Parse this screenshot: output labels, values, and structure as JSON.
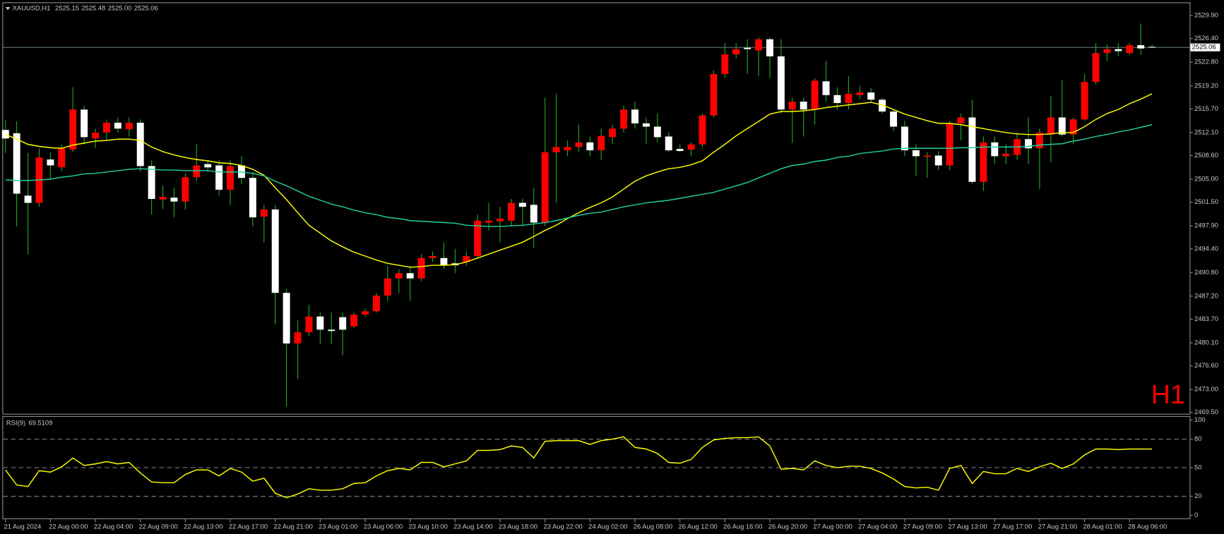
{
  "chart_data": [
    {
      "type": "candlestick",
      "symbol": "XAUUSD,H1",
      "ohlc_labels": [
        "2525.15",
        "2525.48",
        "2525.00",
        "2525.06"
      ],
      "timeframe_label": "H1",
      "categories": [
        "21 Aug 2024",
        null,
        null,
        null,
        "22 Aug 00:00",
        null,
        null,
        null,
        "22 Aug 04:00",
        null,
        null,
        null,
        "22 Aug 09:00",
        null,
        null,
        null,
        "22 Aug 13:00",
        null,
        null,
        null,
        "22 Aug 17:00",
        null,
        null,
        null,
        "22 Aug 21:00",
        null,
        null,
        null,
        "23 Aug 01:00",
        null,
        null,
        null,
        "23 Aug 06:00",
        null,
        null,
        null,
        "23 Aug 10:00",
        null,
        null,
        null,
        "23 Aug 14:00",
        null,
        null,
        null,
        "23 Aug 18:00",
        null,
        null,
        null,
        "23 Aug 22:00",
        null,
        null,
        null,
        "24 Aug 02:00",
        null,
        null,
        null,
        "26 Aug 08:00",
        null,
        null,
        null,
        "26 Aug 12:00",
        null,
        null,
        null,
        "26 Aug 16:00",
        null,
        null,
        null,
        "26 Aug 20:00",
        null,
        null,
        null,
        "27 Aug 00:00",
        null,
        null,
        null,
        "27 Aug 04:00",
        null,
        null,
        null,
        "27 Aug 09:00",
        null,
        null,
        null,
        "27 Aug 13:00",
        null,
        null,
        null,
        "27 Aug 17:00",
        null,
        null,
        null,
        "27 Aug 21:00",
        null,
        null,
        null,
        "28 Aug 01:00",
        null,
        null,
        null,
        "28 Aug 06:00",
        null,
        null
      ],
      "open": [
        2512.5,
        2512,
        2502.5,
        2501.4,
        2508,
        2506.8,
        2509.5,
        2515.6,
        2511.2,
        2512.1,
        2513.6,
        2512.6,
        2513.6,
        2507,
        2501.9,
        2502.2,
        2501.6,
        2505.3,
        2507.3,
        2507.1,
        2503.4,
        2507.1,
        2505.2,
        2499.3,
        2500.4,
        2487.7,
        2480,
        2481.7,
        2484.1,
        2482.1,
        2484,
        2482.6,
        2484.4,
        2484.9,
        2487.3,
        2489.9,
        2490.7,
        2489.9,
        2493,
        2493,
        2492.2,
        2492.4,
        2493.3,
        2498.4,
        2498.6,
        2498.7,
        2501.4,
        2501.1,
        2498.4,
        2509.1,
        2509.4,
        2509.9,
        2510.6,
        2509.4,
        2511.4,
        2512.7,
        2515.6,
        2513.5,
        2513,
        2511.5,
        2509.6,
        2509.5,
        2510.3,
        2514.7,
        2521,
        2524,
        2525,
        2524.6,
        2526.3,
        2523.7,
        2515.6,
        2516.8,
        2515.6,
        2519.9,
        2517.8,
        2516.6,
        2517.8,
        2518.2,
        2517.1,
        2515.3,
        2513,
        2509.4,
        2508.4,
        2508.6,
        2507.1,
        2513.5,
        2514.4,
        2504.6,
        2510.6,
        2508.5,
        2508.7,
        2511.1,
        2509.7,
        2511.8,
        2514.4,
        2511.8,
        2514.1,
        2519.8,
        2524.2,
        2524.8,
        2524.2,
        2525.4,
        2525.15
      ],
      "high": [
        2514,
        2513.8,
        2509,
        2509.7,
        2509.1,
        2510.3,
        2519,
        2516.2,
        2512.7,
        2514.1,
        2514.4,
        2514.4,
        2514.1,
        2507.9,
        2504,
        2503.7,
        2505.9,
        2510.3,
        2507.9,
        2507.9,
        2507.9,
        2508.5,
        2506.1,
        2501.1,
        2501.1,
        2488.3,
        2483.5,
        2485.9,
        2484.7,
        2484.7,
        2484.7,
        2484.7,
        2485.3,
        2487.7,
        2491.8,
        2491.3,
        2491.8,
        2493.6,
        2494,
        2495.4,
        2494.4,
        2494,
        2499.6,
        2501.4,
        2500.8,
        2502,
        2502,
        2503.7,
        2517.4,
        2518,
        2510.9,
        2513.3,
        2511.5,
        2512.7,
        2513.3,
        2516.2,
        2516.8,
        2514.4,
        2515,
        2512.1,
        2510.3,
        2510.6,
        2515,
        2521.6,
        2525.7,
        2525.7,
        2526.3,
        2526.6,
        2526.6,
        2526.3,
        2517.4,
        2517.4,
        2520.4,
        2523,
        2519,
        2520.7,
        2519.2,
        2518.9,
        2517.4,
        2515.6,
        2513.9,
        2510.3,
        2509.1,
        2509.3,
        2513.9,
        2515,
        2517.1,
        2511.5,
        2511.5,
        2510.3,
        2512.1,
        2514.4,
        2512.7,
        2517.7,
        2520.1,
        2514.4,
        2521,
        2525.7,
        2525.5,
        2525.7,
        2525.7,
        2528.7,
        2525.48
      ],
      "low": [
        2509,
        2497.8,
        2493.6,
        2500.8,
        2504.9,
        2506.2,
        2509.1,
        2510.3,
        2509.7,
        2511,
        2512.1,
        2511.5,
        2506.1,
        2499.6,
        2500.5,
        2499.2,
        2500.4,
        2504.7,
        2506.1,
        2502.5,
        2501.1,
        2504.3,
        2497.8,
        2495.4,
        2482.9,
        2470.4,
        2474.6,
        2481.1,
        2479.9,
        2479.9,
        2478.2,
        2482.3,
        2484.1,
        2484.7,
        2486.5,
        2487.7,
        2486.5,
        2489.5,
        2492.4,
        2491.3,
        2490.7,
        2491.8,
        2493,
        2497.2,
        2495.4,
        2497.8,
        2497.8,
        2494.5,
        2497.8,
        2501.4,
        2508.5,
        2509.1,
        2508.5,
        2507.9,
        2510.3,
        2512.1,
        2512.7,
        2510.3,
        2510.6,
        2509.1,
        2509.1,
        2508.5,
        2509.9,
        2514.4,
        2520.4,
        2523.4,
        2521,
        2520.7,
        2520.4,
        2515,
        2510.5,
        2511.5,
        2513.3,
        2516.8,
        2515.6,
        2515.6,
        2517.2,
        2516.6,
        2515,
        2512.3,
        2508.5,
        2505.5,
        2505.2,
        2506.4,
        2506.4,
        2510.9,
        2504.3,
        2503.2,
        2507.3,
        2507.3,
        2507.9,
        2507.3,
        2503.5,
        2507.6,
        2511.5,
        2510.3,
        2513.9,
        2519.4,
        2523,
        2523.7,
        2523.9,
        2523.9,
        2525
      ],
      "close": [
        2511.2,
        2502.8,
        2501.4,
        2508.3,
        2507.1,
        2509.7,
        2515.6,
        2511.4,
        2512.1,
        2513.6,
        2512.7,
        2513.6,
        2507,
        2502,
        2502.3,
        2501.6,
        2505.3,
        2507.1,
        2506.8,
        2503.4,
        2507,
        2505.2,
        2499.2,
        2500.4,
        2487.7,
        2480,
        2481.7,
        2484.1,
        2482.1,
        2481.9,
        2482.1,
        2484.4,
        2484.9,
        2487.3,
        2489.9,
        2490.7,
        2489.9,
        2493,
        2493.3,
        2491.9,
        2491.9,
        2493.3,
        2498.7,
        2498.7,
        2499,
        2501.4,
        2500.8,
        2498.4,
        2509.1,
        2509.9,
        2509.9,
        2510.6,
        2509.4,
        2511.6,
        2512.7,
        2515.6,
        2513.5,
        2513,
        2511.4,
        2509.4,
        2509.3,
        2510.3,
        2514.7,
        2521,
        2524,
        2524.8,
        2524.8,
        2526.3,
        2523.7,
        2515.6,
        2516.8,
        2515.6,
        2520,
        2517.8,
        2516.6,
        2518,
        2518.2,
        2517.1,
        2515.3,
        2513,
        2509.4,
        2508.5,
        2508.6,
        2507.1,
        2513.5,
        2514.4,
        2504.6,
        2510.6,
        2508.5,
        2508.9,
        2511.1,
        2509.7,
        2512.1,
        2514.4,
        2511.8,
        2514.1,
        2519.8,
        2524.2,
        2524.8,
        2524.5,
        2525.4,
        2524.9,
        2525.06
      ],
      "up_color": "#ff0000",
      "down_color": "#ffffff",
      "wick_color": "#22aa22",
      "overlays": [
        {
          "color": "#ffff00",
          "values": [
            2511.8,
            2511.1,
            2510.3,
            2510,
            2509.8,
            2509.7,
            2510.2,
            2510.5,
            2510.8,
            2510.9,
            2511.1,
            2511.1,
            2510.9,
            2509.9,
            2509.2,
            2508.7,
            2508.3,
            2508,
            2507.8,
            2507.5,
            2507.4,
            2507.1,
            2506.5,
            2505.6,
            2503.7,
            2501.9,
            2499.9,
            2498,
            2496.8,
            2495.6,
            2494.7,
            2493.9,
            2493.3,
            2492.7,
            2492.2,
            2491.9,
            2491.6,
            2491.7,
            2491.9,
            2491.9,
            2492,
            2492.4,
            2493,
            2493.6,
            2494.2,
            2494.8,
            2495.4,
            2496.3,
            2497.2,
            2498,
            2499,
            2499.9,
            2500.7,
            2501.4,
            2502.3,
            2503.5,
            2504.7,
            2505.5,
            2506.1,
            2506.6,
            2506.8,
            2507.2,
            2507.8,
            2509.1,
            2510.3,
            2511.6,
            2512.7,
            2513.8,
            2514.9,
            2515.3,
            2515.3,
            2515.4,
            2515.6,
            2515.9,
            2516.1,
            2516.3,
            2516.5,
            2516.7,
            2516.3,
            2515.6,
            2514.9,
            2514.4,
            2513.9,
            2513.5,
            2513.5,
            2513.3,
            2513,
            2512.7,
            2512.4,
            2512.1,
            2511.9,
            2511.8,
            2511.8,
            2511.9,
            2512.1,
            2512.1,
            2513,
            2514.1,
            2515,
            2515.6,
            2516.5,
            2517.2,
            2518
          ]
        },
        {
          "color": "#20d0a0",
          "values": [
            2504.9,
            2504.8,
            2504.8,
            2504.9,
            2505,
            2505.3,
            2505.5,
            2505.8,
            2505.9,
            2506.1,
            2506.3,
            2506.5,
            2506.6,
            2506.5,
            2506.4,
            2506.4,
            2506.3,
            2506.3,
            2506.3,
            2506.1,
            2506.1,
            2506.1,
            2505.9,
            2505.5,
            2504.7,
            2504,
            2503.2,
            2502.4,
            2501.8,
            2501.2,
            2500.8,
            2500.3,
            2499.9,
            2499.6,
            2499.2,
            2499,
            2498.7,
            2498.6,
            2498.5,
            2498.4,
            2498.3,
            2498,
            2497.9,
            2497.8,
            2497.8,
            2497.9,
            2498,
            2498.2,
            2498.4,
            2498.7,
            2499.1,
            2499.5,
            2499.8,
            2500,
            2500.4,
            2500.8,
            2501.1,
            2501.4,
            2501.6,
            2501.8,
            2502.1,
            2502.4,
            2502.7,
            2503,
            2503.5,
            2504,
            2504.5,
            2505.2,
            2505.9,
            2506.6,
            2507.1,
            2507.3,
            2507.7,
            2507.9,
            2508.3,
            2508.5,
            2508.9,
            2509.1,
            2509.3,
            2509.6,
            2509.7,
            2509.7,
            2509.7,
            2509.7,
            2509.7,
            2509.8,
            2509.8,
            2509.9,
            2509.9,
            2509.9,
            2509.9,
            2510,
            2510.2,
            2510.3,
            2510.4,
            2510.8,
            2511.1,
            2511.5,
            2511.8,
            2512.2,
            2512.5,
            2512.9,
            2513.3
          ]
        }
      ],
      "current_price": {
        "value": 2525.06,
        "label": "2525.06"
      },
      "ylim": [
        2469.3,
        2531.8
      ],
      "yticks": [
        {
          "value": 2529.9,
          "label": "2529.90"
        },
        {
          "value": 2526.4,
          "label": "2526.40"
        },
        {
          "value": 2522.8,
          "label": "2522.80"
        },
        {
          "value": 2519.2,
          "label": "2519.20"
        },
        {
          "value": 2515.7,
          "label": "2515.70"
        },
        {
          "value": 2512.1,
          "label": "2512.10"
        },
        {
          "value": 2508.6,
          "label": "2508.60"
        },
        {
          "value": 2505,
          "label": "2505.00"
        },
        {
          "value": 2501.5,
          "label": "2501.50"
        },
        {
          "value": 2497.9,
          "label": "2497.90"
        },
        {
          "value": 2494.4,
          "label": "2494.40"
        },
        {
          "value": 2490.8,
          "label": "2490.80"
        },
        {
          "value": 2487.2,
          "label": "2487.20"
        },
        {
          "value": 2483.7,
          "label": "2483.70"
        },
        {
          "value": 2480.1,
          "label": "2480.10"
        },
        {
          "value": 2476.6,
          "label": "2476.60"
        },
        {
          "value": 2473,
          "label": "2473.00"
        },
        {
          "value": 2469.5,
          "label": "2469.50"
        }
      ]
    },
    {
      "type": "line",
      "title": "RSI(9)",
      "series": [
        {
          "color": "#ffff00",
          "values": [
            47.6,
            31.8,
            30.2,
            46.8,
            45.3,
            50.8,
            60.2,
            52.3,
            53.9,
            56.3,
            53.9,
            55.5,
            44.4,
            35,
            34.2,
            34.2,
            42.9,
            47.6,
            47.6,
            41.3,
            49.2,
            45.3,
            35.8,
            38.9,
            23.1,
            18.4,
            22.3,
            27.9,
            26.3,
            26.3,
            27.9,
            33.4,
            34.2,
            41.3,
            46.8,
            49.2,
            47.6,
            55.5,
            55.5,
            50.8,
            53.9,
            57.1,
            68.1,
            68.1,
            68.9,
            72.8,
            71.2,
            60.2,
            77.6,
            78.4,
            78.4,
            78.4,
            74.4,
            78.4,
            79.9,
            82.3,
            71.2,
            69.6,
            64.9,
            55.5,
            54.7,
            58.6,
            71.2,
            79.1,
            80.7,
            81.5,
            81.5,
            82.3,
            72.8,
            48.4,
            49.2,
            47.6,
            57.1,
            52.3,
            50,
            51.5,
            51.5,
            49.2,
            44.4,
            38.1,
            30.2,
            28.7,
            29.4,
            26.3,
            49.2,
            52.3,
            33.4,
            46,
            43.6,
            43.6,
            49.2,
            46,
            50.8,
            54.7,
            49.2,
            53.9,
            63.4,
            69.6,
            69.6,
            68.9,
            69.6,
            69.6,
            69.5109
          ]
        }
      ],
      "levels": [
        80,
        50,
        20
      ],
      "ylim": [
        0,
        100
      ],
      "yticks": [
        100,
        80,
        50,
        20,
        0
      ]
    }
  ]
}
